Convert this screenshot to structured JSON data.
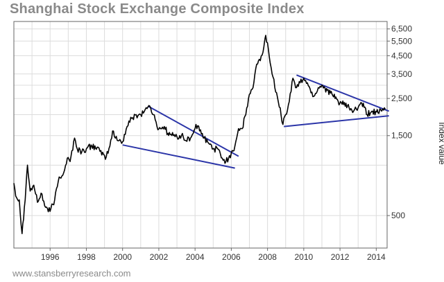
{
  "chart_data": {
    "type": "line",
    "title": "Shanghai Stock Exchange Composite Index",
    "xlabel": "",
    "ylabel": "Index value",
    "y_scale": "log",
    "ylim": [
      320,
      7200
    ],
    "xlim": [
      1994.0,
      2014.6
    ],
    "x_ticks": [
      1996,
      1998,
      2000,
      2002,
      2004,
      2006,
      2008,
      2010,
      2012,
      2014
    ],
    "x_tick_labels": [
      "1996",
      "1998",
      "2000",
      "2002",
      "2004",
      "2006",
      "2008",
      "2010",
      "2012",
      "2014"
    ],
    "y_ticks": [
      500,
      1500,
      2500,
      3500,
      4500,
      5500,
      6500
    ],
    "y_tick_labels": [
      "500",
      "1,500",
      "2,500",
      "3,500",
      "4,500",
      "5,500",
      "6,500"
    ],
    "grid": true,
    "legend": "none",
    "series": [
      {
        "color": "#000000",
        "x": [
          1994.0,
          1994.15,
          1994.3,
          1994.45,
          1994.58,
          1994.75,
          1994.9,
          1995.1,
          1995.3,
          1995.5,
          1995.75,
          1996.0,
          1996.25,
          1996.5,
          1996.75,
          1996.95,
          1997.1,
          1997.35,
          1997.5,
          1997.75,
          1998.0,
          1998.3,
          1998.6,
          1998.85,
          1999.1,
          1999.3,
          1999.45,
          1999.6,
          1999.8,
          2000.0,
          2000.25,
          2000.5,
          2000.75,
          2001.0,
          2001.25,
          2001.5,
          2001.7,
          2001.9,
          2002.1,
          2002.3,
          2002.5,
          2002.8,
          2003.0,
          2003.25,
          2003.5,
          2003.75,
          2003.9,
          2004.05,
          2004.25,
          2004.5,
          2004.75,
          2005.0,
          2005.25,
          2005.5,
          2005.7,
          2005.85,
          2006.0,
          2006.2,
          2006.4,
          2006.6,
          2006.8,
          2007.0,
          2007.2,
          2007.4,
          2007.6,
          2007.8,
          2007.9,
          2008.05,
          2008.25,
          2008.5,
          2008.7,
          2008.85,
          2009.0,
          2009.2,
          2009.4,
          2009.6,
          2009.8,
          2010.0,
          2010.2,
          2010.4,
          2010.6,
          2010.8,
          2011.0,
          2011.3,
          2011.6,
          2011.9,
          2012.2,
          2012.5,
          2012.75,
          2013.0,
          2013.2,
          2013.5,
          2013.8,
          2014.1,
          2014.3,
          2014.5
        ],
        "values": [
          780,
          640,
          620,
          390,
          560,
          1000,
          700,
          760,
          600,
          680,
          560,
          530,
          620,
          850,
          900,
          1100,
          1050,
          1450,
          1250,
          1200,
          1250,
          1300,
          1280,
          1150,
          1120,
          1300,
          1600,
          1450,
          1400,
          1380,
          1700,
          1900,
          2000,
          2000,
          2150,
          2250,
          2000,
          1700,
          1650,
          1700,
          1550,
          1500,
          1480,
          1500,
          1400,
          1450,
          1550,
          1750,
          1600,
          1450,
          1350,
          1250,
          1250,
          1100,
          1050,
          1100,
          1180,
          1300,
          1650,
          1650,
          2000,
          2650,
          2900,
          4000,
          4200,
          5100,
          5950,
          4900,
          3500,
          2700,
          2200,
          1750,
          2000,
          2400,
          3300,
          2900,
          3100,
          3300,
          3100,
          2700,
          2600,
          2900,
          3000,
          2800,
          2600,
          2400,
          2300,
          2200,
          2100,
          2200,
          2350,
          2000,
          2100,
          2050,
          2100,
          2150
        ]
      }
    ],
    "trendlines": [
      {
        "color": "#2b35a8",
        "x": [
          2001.4,
          2006.4
        ],
        "values": [
          2250,
          1130
        ]
      },
      {
        "color": "#2b35a8",
        "x": [
          2000.0,
          2006.2
        ],
        "values": [
          1320,
          960
        ]
      },
      {
        "color": "#2b35a8",
        "x": [
          2009.6,
          2014.7
        ],
        "values": [
          3450,
          2100
        ]
      },
      {
        "color": "#2b35a8",
        "x": [
          2008.9,
          2014.7
        ],
        "values": [
          1700,
          1970
        ]
      }
    ]
  },
  "source_credit": "www.stansberryresearch.com"
}
